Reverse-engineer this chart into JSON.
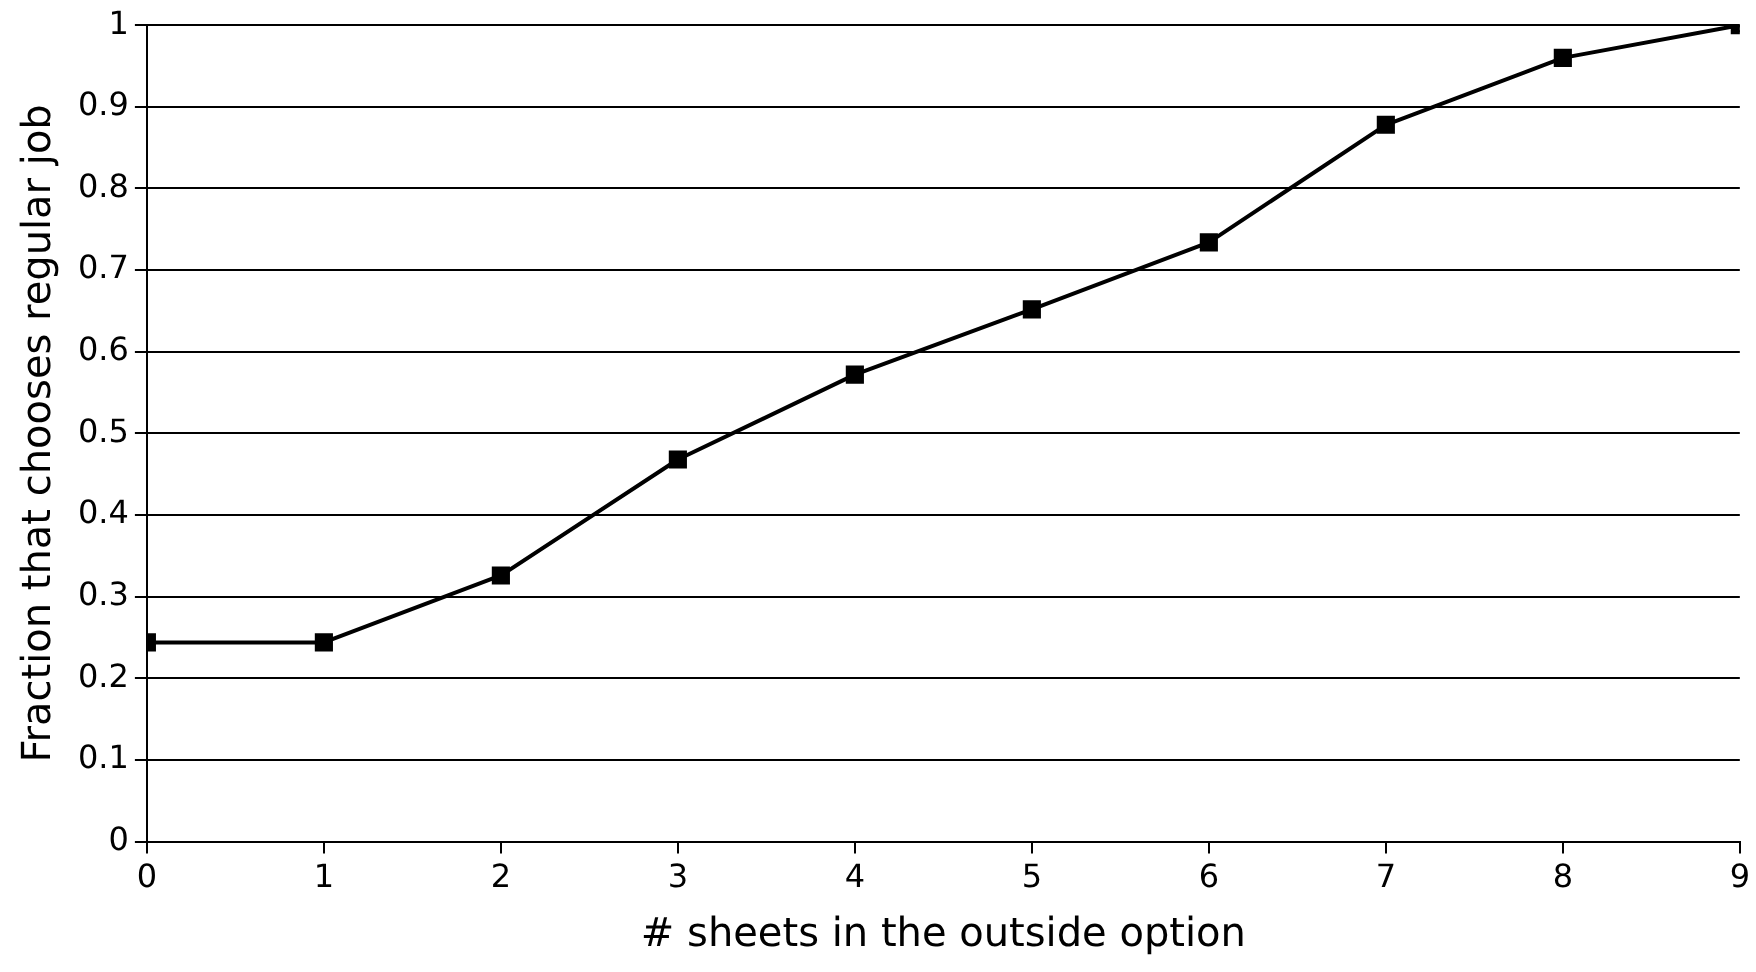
{
  "chart_data": {
    "type": "line",
    "xlabel": "# sheets in the outside option",
    "ylabel": "Fraction that chooses regular job",
    "x": [
      0,
      1,
      2,
      3,
      4,
      5,
      6,
      7,
      8,
      9
    ],
    "series": [
      {
        "color": "#000000",
        "values": [
          0.244,
          0.244,
          0.326,
          0.468,
          0.572,
          0.652,
          0.734,
          0.878,
          0.96,
          1.0
        ]
      }
    ],
    "xlim": [
      0,
      9
    ],
    "xticks": [
      0,
      1,
      2,
      3,
      4,
      5,
      6,
      7,
      8,
      9
    ],
    "ylim": [
      0,
      1
    ],
    "yticks": [
      0,
      0.1,
      0.2,
      0.3,
      0.4,
      0.5,
      0.6,
      0.7,
      0.8,
      0.9,
      1
    ],
    "grid": "y",
    "legend": false,
    "marker": "square",
    "line_style": "solid"
  }
}
